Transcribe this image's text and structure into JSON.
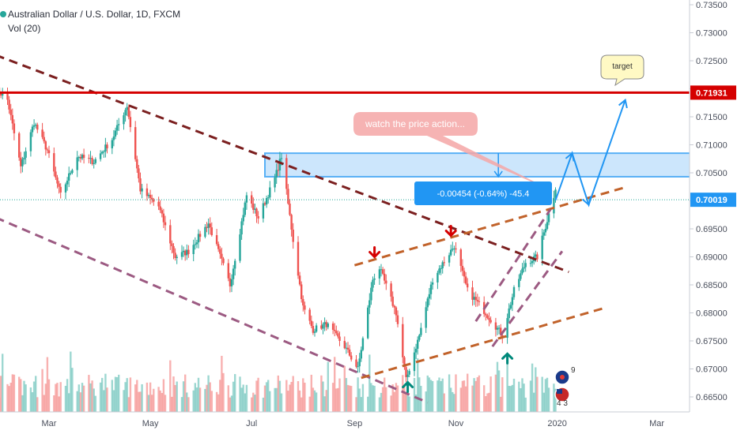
{
  "header": {
    "title": "Australian Dollar / U.S. Dollar, 1D, FXCM",
    "indicator": "Vol (20)"
  },
  "annotations": {
    "callout": "watch the price action...",
    "target": "target",
    "measure": "-0.00454 (-0.64%) -45.4",
    "flag_top": "9",
    "flag_bottom": "4 3"
  },
  "colors": {
    "up": "#26a69a",
    "down": "#ef5350",
    "resistance_line": "#d50000",
    "zone_fill": "#bbdefb",
    "zone_border": "#2196f3",
    "trend_dark": "#7b1f1f",
    "trend_brown": "#c1622a",
    "trend_purple": "#9c5a82",
    "projection": "#2196f3"
  },
  "chart_data": {
    "type": "candlestick",
    "symbol": "AUDUSD",
    "timeframe": "1D",
    "source": "FXCM",
    "x_axis": {
      "type": "date",
      "ticks": [
        {
          "label": "Mar",
          "date": "2019-03-01"
        },
        {
          "label": "May",
          "date": "2019-05-01"
        },
        {
          "label": "Jul",
          "date": "2019-07-01"
        },
        {
          "label": "Sep",
          "date": "2019-09-01"
        },
        {
          "label": "Nov",
          "date": "2019-11-01"
        },
        {
          "label": "2020",
          "date": "2020-01-01"
        },
        {
          "label": "Mar",
          "date": "2020-03-01"
        }
      ]
    },
    "y_axis": {
      "side": "right",
      "ylim": [
        0.6605,
        0.736
      ],
      "ticks": [
        "0.73500",
        "0.73000",
        "0.72500",
        "0.72000",
        "0.71500",
        "0.71000",
        "0.70500",
        "0.70000",
        "0.69500",
        "0.69000",
        "0.68500",
        "0.68000",
        "0.67500",
        "0.67000",
        "0.66500"
      ]
    },
    "price_labels": [
      {
        "text": "0.71931",
        "value": 0.71931,
        "color": "#d50000"
      },
      {
        "text": "0.70019",
        "value": 0.70019,
        "color": "#2196f3"
      }
    ],
    "horizontal_line": {
      "value": 0.71931
    },
    "zone": {
      "from": "2019-07-09",
      "to": "2020-04-01",
      "low": 0.7043,
      "high": 0.7085
    },
    "price_path": [
      {
        "date": "2019-01-28",
        "close": 0.72
      },
      {
        "date": "2019-02-04",
        "close": 0.718
      },
      {
        "date": "2019-02-12",
        "close": 0.706
      },
      {
        "date": "2019-02-20",
        "close": 0.714
      },
      {
        "date": "2019-02-28",
        "close": 0.709
      },
      {
        "date": "2019-03-08",
        "close": 0.701
      },
      {
        "date": "2019-03-18",
        "close": 0.708
      },
      {
        "date": "2019-03-28",
        "close": 0.707
      },
      {
        "date": "2019-04-08",
        "close": 0.711
      },
      {
        "date": "2019-04-17",
        "close": 0.717
      },
      {
        "date": "2019-04-25",
        "close": 0.702
      },
      {
        "date": "2019-05-06",
        "close": 0.699
      },
      {
        "date": "2019-05-16",
        "close": 0.69
      },
      {
        "date": "2019-05-24",
        "close": 0.691
      },
      {
        "date": "2019-06-05",
        "close": 0.696
      },
      {
        "date": "2019-06-18",
        "close": 0.685
      },
      {
        "date": "2019-06-28",
        "close": 0.701
      },
      {
        "date": "2019-07-05",
        "close": 0.697
      },
      {
        "date": "2019-07-15",
        "close": 0.704
      },
      {
        "date": "2019-07-19",
        "close": 0.708
      },
      {
        "date": "2019-07-26",
        "close": 0.693
      },
      {
        "date": "2019-08-01",
        "close": 0.681
      },
      {
        "date": "2019-08-07",
        "close": 0.677
      },
      {
        "date": "2019-08-15",
        "close": 0.678
      },
      {
        "date": "2019-08-26",
        "close": 0.674
      },
      {
        "date": "2019-09-03",
        "close": 0.67
      },
      {
        "date": "2019-09-12",
        "close": 0.686
      },
      {
        "date": "2019-09-16",
        "close": 0.688
      },
      {
        "date": "2019-09-26",
        "close": 0.68
      },
      {
        "date": "2019-10-02",
        "close": 0.668
      },
      {
        "date": "2019-10-10",
        "close": 0.676
      },
      {
        "date": "2019-10-18",
        "close": 0.686
      },
      {
        "date": "2019-10-31",
        "close": 0.692
      },
      {
        "date": "2019-11-08",
        "close": 0.684
      },
      {
        "date": "2019-11-19",
        "close": 0.68
      },
      {
        "date": "2019-11-29",
        "close": 0.676
      },
      {
        "date": "2019-12-06",
        "close": 0.684
      },
      {
        "date": "2019-12-13",
        "close": 0.689
      },
      {
        "date": "2019-12-20",
        "close": 0.69
      },
      {
        "date": "2019-12-31",
        "close": 0.702
      }
    ],
    "trend_lines": [
      {
        "style": "dashed",
        "color": "#7b1f1f",
        "from": {
          "date": "2019-01-28",
          "value": 0.726
        },
        "to": {
          "date": "2020-01-08",
          "value": 0.6873
        }
      },
      {
        "style": "dashed",
        "color": "#9c5a82",
        "from": {
          "date": "2019-01-28",
          "value": 0.697
        },
        "to": {
          "date": "2019-10-15",
          "value": 0.664
        }
      },
      {
        "style": "dashed",
        "color": "#c1622a",
        "from": {
          "date": "2019-09-01",
          "value": 0.6885
        },
        "to": {
          "date": "2020-02-12",
          "value": 0.7025
        }
      },
      {
        "style": "dashed",
        "color": "#c1622a",
        "from": {
          "date": "2019-09-05",
          "value": 0.6684
        },
        "to": {
          "date": "2020-01-31",
          "value": 0.681
        }
      },
      {
        "style": "dashed",
        "color": "#9c5a82",
        "from": {
          "date": "2019-11-13",
          "value": 0.6785
        },
        "to": {
          "date": "2019-12-28",
          "value": 0.6985
        }
      },
      {
        "style": "dashed",
        "color": "#9c5a82",
        "from": {
          "date": "2019-11-23",
          "value": 0.674
        },
        "to": {
          "date": "2020-01-04",
          "value": 0.691
        }
      }
    ],
    "projection_path": [
      {
        "date": "2019-12-31",
        "value": 0.7001
      },
      {
        "date": "2020-01-10",
        "value": 0.7085
      },
      {
        "date": "2020-01-20",
        "value": 0.6993
      },
      {
        "date": "2020-02-11",
        "value": 0.718
      }
    ],
    "arrows": [
      {
        "direction": "down",
        "color": "#d50000",
        "date": "2019-09-13",
        "value": 0.69
      },
      {
        "direction": "down",
        "color": "#d50000",
        "date": "2019-10-29",
        "value": 0.6938
      },
      {
        "direction": "up",
        "color": "#00897b",
        "date": "2019-10-03",
        "value": 0.6676
      },
      {
        "direction": "up",
        "color": "#00897b",
        "date": "2019-12-02",
        "value": 0.6727
      }
    ]
  }
}
